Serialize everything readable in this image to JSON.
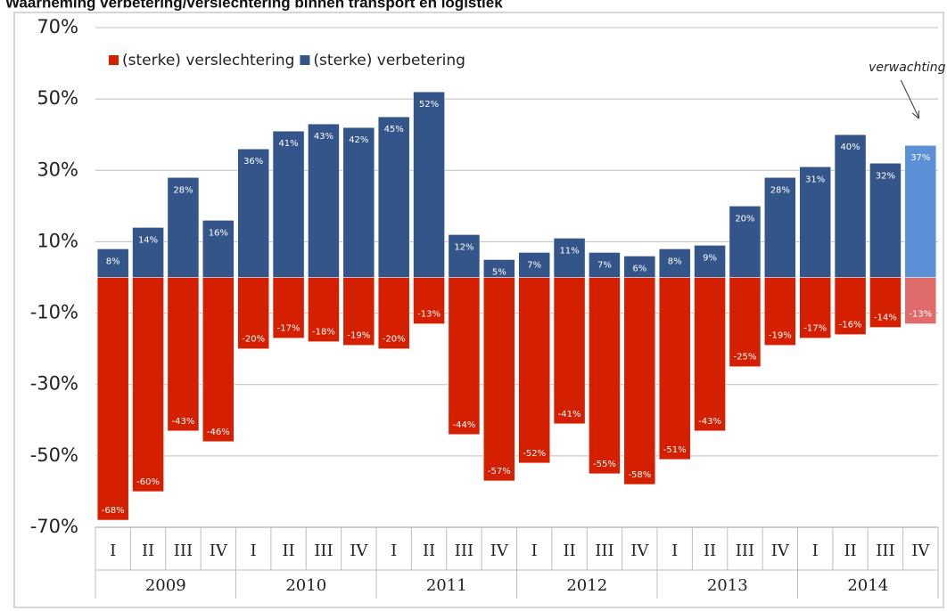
{
  "chart_data": {
    "type": "bar",
    "title": "Waarneming verbetering/verslechtering binnen transport en logistiek",
    "categories": [
      "I",
      "II",
      "III",
      "IV",
      "I",
      "II",
      "III",
      "IV",
      "I",
      "II",
      "III",
      "IV",
      "I",
      "II",
      "III",
      "IV",
      "I",
      "II",
      "III",
      "IV",
      "I",
      "II",
      "III",
      "IV"
    ],
    "x_groups": [
      "2009",
      "2010",
      "2011",
      "2012",
      "2013",
      "2014"
    ],
    "series": [
      {
        "name": "(sterke) verslechtering",
        "color": "#d42000",
        "colors": [
          "#d42000",
          "#d42000",
          "#d42000",
          "#d42000",
          "#d42000",
          "#d42000",
          "#d42000",
          "#d42000",
          "#d42000",
          "#d42000",
          "#d42000",
          "#d42000",
          "#d42000",
          "#d42000",
          "#d42000",
          "#d42000",
          "#d42000",
          "#d42000",
          "#d42000",
          "#d42000",
          "#d42000",
          "#d42000",
          "#d42000",
          "#e06b6b"
        ],
        "values": [
          -68,
          -60,
          -43,
          -46,
          -20,
          -17,
          -18,
          -19,
          -20,
          -13,
          -44,
          -57,
          -52,
          -41,
          -55,
          -58,
          -51,
          -43,
          -25,
          -19,
          -17,
          -16,
          -14,
          -13
        ],
        "value_labels": [
          "-68%",
          "-60%",
          "-43%",
          "-46%",
          "-20%",
          "-17%",
          "-18%",
          "-19%",
          "-20%",
          "-13%",
          "-44%",
          "-57%",
          "-52%",
          "-41%",
          "-55%",
          "-58%",
          "-51%",
          "-43%",
          "-25%",
          "-19%",
          "-17%",
          "-16%",
          "-14%",
          "-13%"
        ]
      },
      {
        "name": "(sterke) verbetering",
        "color": "#34558a",
        "colors": [
          "#34558a",
          "#34558a",
          "#34558a",
          "#34558a",
          "#34558a",
          "#34558a",
          "#34558a",
          "#34558a",
          "#34558a",
          "#34558a",
          "#34558a",
          "#34558a",
          "#34558a",
          "#34558a",
          "#34558a",
          "#34558a",
          "#34558a",
          "#34558a",
          "#34558a",
          "#34558a",
          "#34558a",
          "#34558a",
          "#34558a",
          "#5b90d6"
        ],
        "values": [
          8,
          14,
          28,
          16,
          36,
          41,
          43,
          42,
          45,
          52,
          12,
          5,
          7,
          11,
          7,
          6,
          8,
          9,
          20,
          28,
          31,
          40,
          32,
          37
        ],
        "value_labels": [
          "8%",
          "14%",
          "28%",
          "16%",
          "36%",
          "41%",
          "43%",
          "42%",
          "45%",
          "52%",
          "12%",
          "5%",
          "7%",
          "11%",
          "7%",
          "6%",
          "8%",
          "9%",
          "20%",
          "28%",
          "31%",
          "40%",
          "32%",
          "37%"
        ]
      }
    ],
    "annotation": "verwachting",
    "ylim": [
      -70,
      70
    ],
    "yticks": [
      {
        "value": -70,
        "label": "-70%"
      },
      {
        "value": -50,
        "label": "-50%"
      },
      {
        "value": -30,
        "label": "-30%"
      },
      {
        "value": -10,
        "label": "-10%"
      },
      {
        "value": 10,
        "label": "10%"
      },
      {
        "value": 30,
        "label": "30%"
      },
      {
        "value": 50,
        "label": "50%"
      },
      {
        "value": 70,
        "label": "70%"
      }
    ],
    "grid": true,
    "legend": "top-left"
  }
}
